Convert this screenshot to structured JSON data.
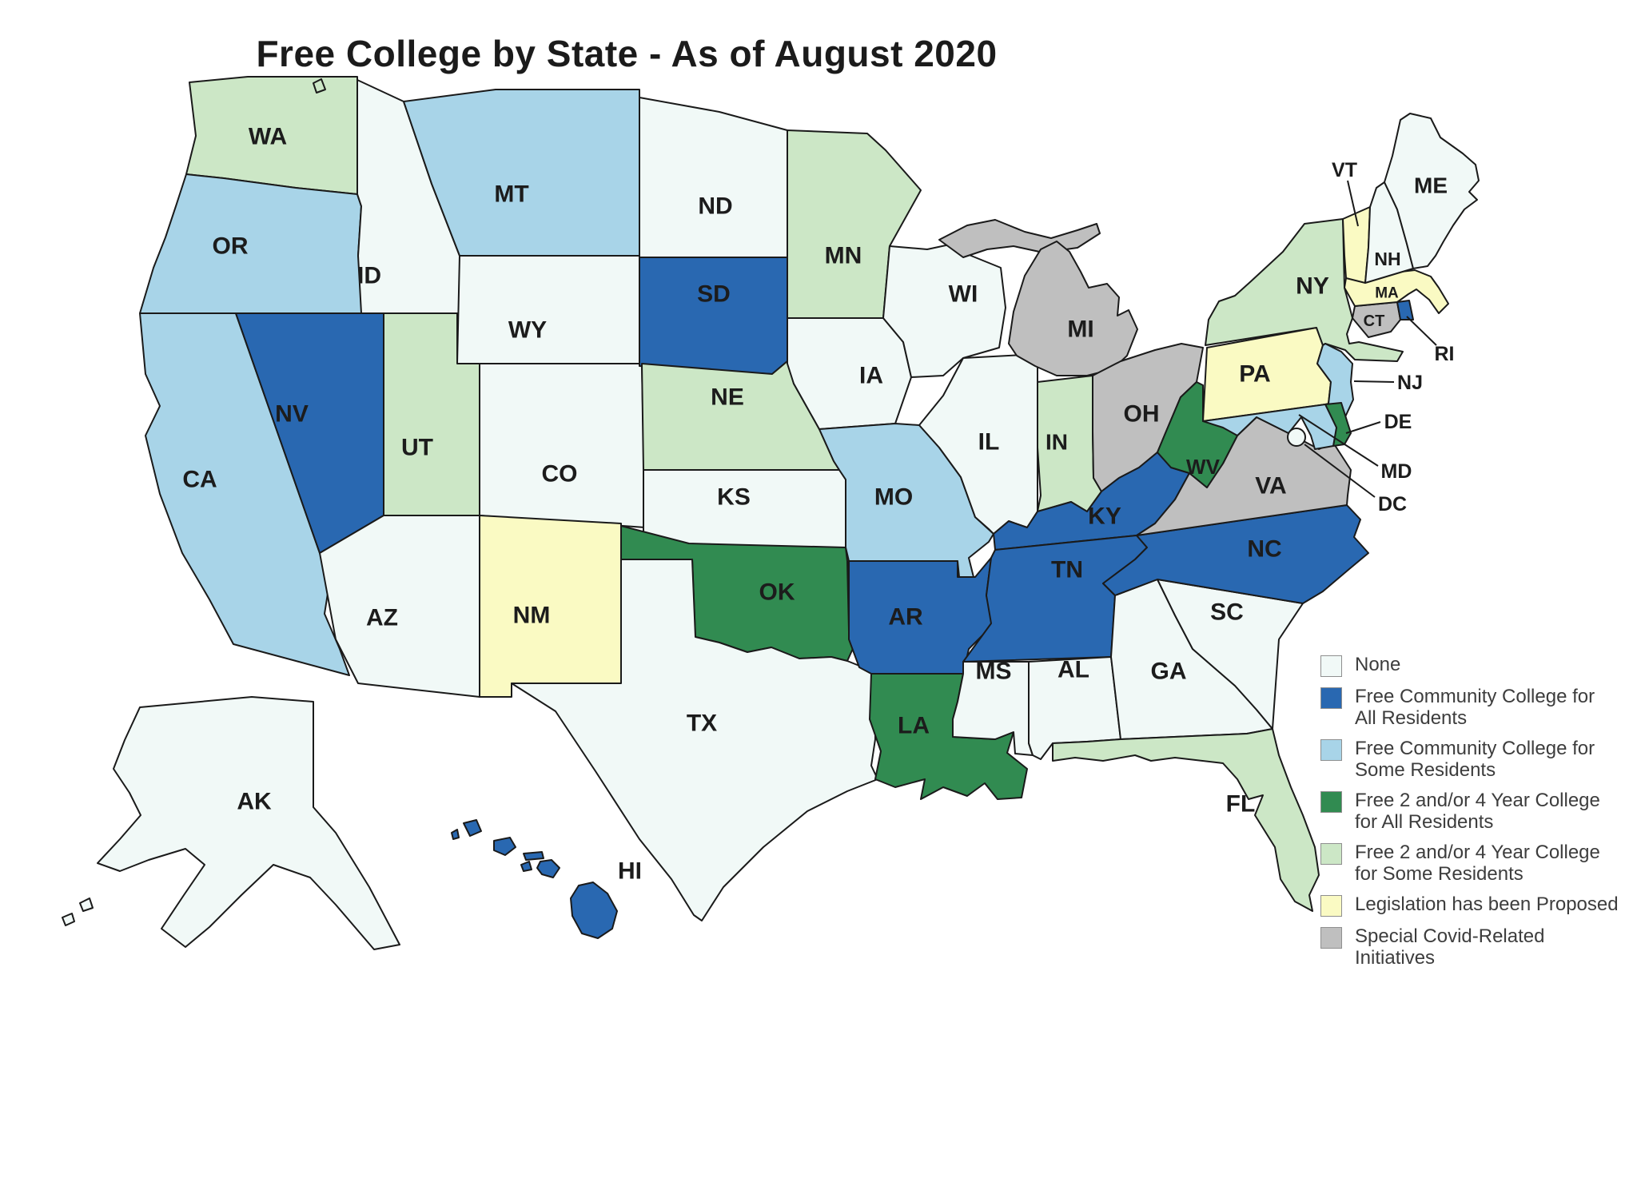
{
  "title": "Free College by State - As of August 2020",
  "legend": {
    "items": [
      {
        "id": "none",
        "color": "#F1F9F7",
        "lines": [
          "None"
        ]
      },
      {
        "id": "fcc_all",
        "color": "#2968B1",
        "lines": [
          "Free Community College for",
          "All Residents"
        ]
      },
      {
        "id": "fcc_some",
        "color": "#A8D4E8",
        "lines": [
          "Free Community College for",
          "Some Residents"
        ]
      },
      {
        "id": "f24_all",
        "color": "#318B51",
        "lines": [
          "Free 2 and/or 4 Year College",
          "for All Residents"
        ]
      },
      {
        "id": "f24_some",
        "color": "#CCE7C6",
        "lines": [
          "Free 2 and/or 4 Year College",
          "for Some Residents"
        ]
      },
      {
        "id": "proposed",
        "color": "#FAFAC3",
        "lines": [
          "Legislation has been Proposed"
        ]
      },
      {
        "id": "covid",
        "color": "#BFBFBF",
        "lines": [
          "Special Covid-Related",
          "Initiatives"
        ]
      }
    ]
  },
  "states": [
    {
      "abbr": "WA",
      "category": "f24_some"
    },
    {
      "abbr": "OR",
      "category": "fcc_some"
    },
    {
      "abbr": "CA",
      "category": "fcc_some"
    },
    {
      "abbr": "NV",
      "category": "fcc_all"
    },
    {
      "abbr": "ID",
      "category": "none"
    },
    {
      "abbr": "MT",
      "category": "fcc_some"
    },
    {
      "abbr": "WY",
      "category": "none"
    },
    {
      "abbr": "UT",
      "category": "f24_some"
    },
    {
      "abbr": "CO",
      "category": "none"
    },
    {
      "abbr": "AZ",
      "category": "none"
    },
    {
      "abbr": "NM",
      "category": "proposed"
    },
    {
      "abbr": "ND",
      "category": "none"
    },
    {
      "abbr": "SD",
      "category": "fcc_all"
    },
    {
      "abbr": "NE",
      "category": "f24_some"
    },
    {
      "abbr": "KS",
      "category": "none"
    },
    {
      "abbr": "OK",
      "category": "f24_all"
    },
    {
      "abbr": "TX",
      "category": "none"
    },
    {
      "abbr": "MN",
      "category": "f24_some"
    },
    {
      "abbr": "IA",
      "category": "none"
    },
    {
      "abbr": "MO",
      "category": "fcc_some"
    },
    {
      "abbr": "AR",
      "category": "fcc_all"
    },
    {
      "abbr": "LA",
      "category": "f24_all"
    },
    {
      "abbr": "WI",
      "category": "none"
    },
    {
      "abbr": "IL",
      "category": "none"
    },
    {
      "abbr": "IN",
      "category": "f24_some"
    },
    {
      "abbr": "MI",
      "category": "covid"
    },
    {
      "abbr": "OH",
      "category": "covid"
    },
    {
      "abbr": "KY",
      "category": "fcc_all"
    },
    {
      "abbr": "TN",
      "category": "fcc_all"
    },
    {
      "abbr": "MS",
      "category": "none"
    },
    {
      "abbr": "AL",
      "category": "none"
    },
    {
      "abbr": "GA",
      "category": "none"
    },
    {
      "abbr": "FL",
      "category": "f24_some"
    },
    {
      "abbr": "SC",
      "category": "none"
    },
    {
      "abbr": "NC",
      "category": "fcc_all"
    },
    {
      "abbr": "VA",
      "category": "covid"
    },
    {
      "abbr": "WV",
      "category": "f24_all"
    },
    {
      "abbr": "PA",
      "category": "proposed"
    },
    {
      "abbr": "NY",
      "category": "f24_some"
    },
    {
      "abbr": "NJ",
      "category": "fcc_some"
    },
    {
      "abbr": "DE",
      "category": "f24_all"
    },
    {
      "abbr": "MD",
      "category": "fcc_some"
    },
    {
      "abbr": "DC",
      "category": "none"
    },
    {
      "abbr": "CT",
      "category": "covid"
    },
    {
      "abbr": "RI",
      "category": "fcc_all"
    },
    {
      "abbr": "MA",
      "category": "proposed"
    },
    {
      "abbr": "VT",
      "category": "proposed"
    },
    {
      "abbr": "NH",
      "category": "none"
    },
    {
      "abbr": "ME",
      "category": "none"
    },
    {
      "abbr": "AK",
      "category": "none"
    },
    {
      "abbr": "HI",
      "category": "fcc_all"
    }
  ]
}
